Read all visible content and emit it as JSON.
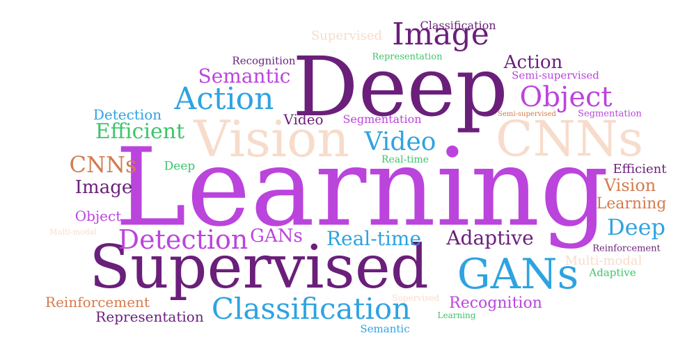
{
  "words": [
    {
      "text": "Learning",
      "color": "#bb44dd"
    },
    {
      "text": "Deep",
      "color": "#6a1f7a"
    },
    {
      "text": "Supervised",
      "color": "#6a1f7a"
    },
    {
      "text": "Vision",
      "color": "#f7dccb"
    },
    {
      "text": "CNNs",
      "color": "#f7dccb"
    },
    {
      "text": "GANs",
      "color": "#2ea3e0"
    },
    {
      "text": "Image",
      "color": "#6a1f7a"
    },
    {
      "text": "Action",
      "color": "#2ea3e0"
    },
    {
      "text": "Object",
      "color": "#bb44dd"
    },
    {
      "text": "Classification",
      "color": "#2ea3e0"
    },
    {
      "text": "Detection",
      "color": "#bb44dd"
    },
    {
      "text": "Video",
      "color": "#2ea3e0"
    },
    {
      "text": "Efficient",
      "color": "#3cc46a"
    },
    {
      "text": "Semantic",
      "color": "#bb44dd"
    },
    {
      "text": "Action",
      "color": "#6a1f7a"
    },
    {
      "text": "CNNs",
      "color": "#d47a4e"
    },
    {
      "text": "Adaptive",
      "color": "#6a1f7a"
    },
    {
      "text": "Real-time",
      "color": "#2ea3e0"
    },
    {
      "text": "Deep",
      "color": "#2ea3e0"
    },
    {
      "text": "GANs",
      "color": "#bb44dd"
    },
    {
      "text": "Image",
      "color": "#6a1f7a"
    },
    {
      "text": "Vision",
      "color": "#d47a4e"
    },
    {
      "text": "Recognition",
      "color": "#bb44dd"
    },
    {
      "text": "Reinforcement",
      "color": "#d47a4e"
    },
    {
      "text": "Representation",
      "color": "#6a1f7a"
    },
    {
      "text": "Learning",
      "color": "#d47a4e"
    },
    {
      "text": "Video",
      "color": "#6a1f7a"
    },
    {
      "text": "Detection",
      "color": "#2ea3e0"
    },
    {
      "text": "Object",
      "color": "#bb44dd"
    },
    {
      "text": "Segmentation",
      "color": "#bb44dd"
    },
    {
      "text": "Efficient",
      "color": "#6a1f7a"
    },
    {
      "text": "Classification",
      "color": "#6a1f7a"
    },
    {
      "text": "Supervised",
      "color": "#f7dccb"
    },
    {
      "text": "Multi-modal",
      "color": "#f7dccb"
    },
    {
      "text": "Semi-supervised",
      "color": "#bb44dd"
    },
    {
      "text": "Recognition",
      "color": "#6a1f7a"
    },
    {
      "text": "Representation",
      "color": "#3cc46a"
    },
    {
      "text": "Deep",
      "color": "#3cc46a"
    },
    {
      "text": "Real-time",
      "color": "#3cc46a"
    },
    {
      "text": "Adaptive",
      "color": "#3cc46a"
    },
    {
      "text": "Semantic",
      "color": "#2ea3e0"
    },
    {
      "text": "Segmentation",
      "color": "#bb44dd"
    },
    {
      "text": "Reinforcement",
      "color": "#6a1f7a"
    },
    {
      "text": "Semi-supervised",
      "color": "#d47a4e"
    },
    {
      "text": "Learning",
      "color": "#3cc46a"
    },
    {
      "text": "Supervised",
      "color": "#f7dccb"
    },
    {
      "text": "Multi-modal",
      "color": "#f7dccb"
    }
  ]
}
